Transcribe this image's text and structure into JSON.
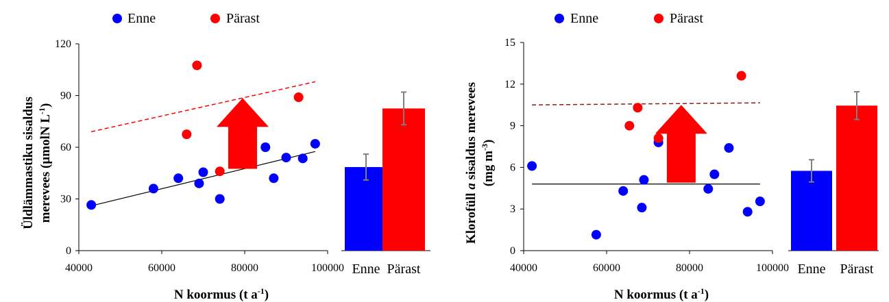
{
  "colors": {
    "before": "#0000ff",
    "after": "#ff0000",
    "arrow": "#ff0000",
    "error_bar": "#7f7f7f"
  },
  "chart_data": [
    {
      "type": "scatter",
      "legend": {
        "before": "Enne",
        "after": "Pärast",
        "position": "top"
      },
      "xlabel": "N koormus (t a⁻¹)",
      "xlabel_main": "N koormus (t a",
      "xlabel_sup": "-1",
      "xlabel_end": ")",
      "ylabel_line1": "Üldlämmastiku sisaldus",
      "ylabel_line2_main": "merevees (µmolN L",
      "ylabel_line2_sup": "-1",
      "ylabel_line2_end": ")",
      "xlim": [
        40000,
        100000
      ],
      "ylim": [
        0,
        120
      ],
      "xticks": [
        40000,
        60000,
        80000,
        100000
      ],
      "xtick_labels": [
        "40000",
        "60000",
        "80000",
        "100000"
      ],
      "yticks": [
        0,
        30,
        60,
        90,
        120
      ],
      "ytick_labels": [
        "0",
        "30",
        "60",
        "90",
        "120"
      ],
      "series": [
        {
          "name": "Enne",
          "x": [
            43000,
            58000,
            64000,
            69000,
            70000,
            74000,
            78000,
            80000,
            85000,
            87000,
            90000,
            94000,
            97000
          ],
          "y": [
            26.5,
            36,
            42,
            39,
            45.5,
            30,
            53,
            53,
            60,
            42,
            54,
            53.5,
            62
          ]
        },
        {
          "name": "Pärast",
          "x": [
            66000,
            68500,
            74000,
            93000
          ],
          "y": [
            67.5,
            107.5,
            46,
            89
          ]
        }
      ],
      "trend_before": {
        "x": [
          43000,
          97000
        ],
        "y": [
          26,
          57.5
        ]
      },
      "trend_after": {
        "x": [
          43000,
          97000
        ],
        "y": [
          69,
          98
        ]
      },
      "arrow": {
        "x": 79500,
        "y_from": 47.5,
        "y_to": 88.5
      },
      "bars": {
        "categories": [
          "Enne",
          "Pärast"
        ],
        "values": [
          48.5,
          82.5
        ],
        "errors": [
          7.5,
          9.5
        ]
      }
    },
    {
      "type": "scatter",
      "legend": {
        "before": "Enne",
        "after": "Pärast",
        "position": "top"
      },
      "xlabel": "N koormus (t a⁻¹)",
      "xlabel_main": "N koormus (t a",
      "xlabel_sup": "-1",
      "xlabel_end": ")",
      "ylabel_line1_pre": "Klorofüll ",
      "ylabel_line1_italic": "a",
      "ylabel_line1_post": " sisaldus merevees",
      "ylabel_line2_main": "(mg m",
      "ylabel_line2_sup": "-3",
      "ylabel_line2_end": ")",
      "xlim": [
        40000,
        100000
      ],
      "ylim": [
        0,
        15
      ],
      "xticks": [
        40000,
        60000,
        80000,
        100000
      ],
      "xtick_labels": [
        "40000",
        "60000",
        "80000",
        "100000"
      ],
      "yticks": [
        0,
        3,
        6,
        9,
        12,
        15
      ],
      "ytick_labels": [
        "0",
        "3",
        "6",
        "9",
        "12",
        "15"
      ],
      "series": [
        {
          "name": "Enne",
          "x": [
            42000,
            57500,
            64000,
            68500,
            69000,
            72500,
            76500,
            84500,
            86000,
            89500,
            94000,
            97000
          ],
          "y": [
            6.1,
            1.15,
            4.3,
            3.1,
            5.1,
            7.8,
            6.3,
            4.45,
            5.5,
            7.4,
            2.8,
            3.55
          ]
        },
        {
          "name": "Pärast",
          "x": [
            65500,
            67500,
            72500,
            92500
          ],
          "y": [
            9.0,
            10.3,
            8.1,
            12.6
          ]
        }
      ],
      "trend_before": {
        "x": [
          42000,
          97000
        ],
        "y": [
          4.8,
          4.8
        ]
      },
      "trend_after": {
        "x": [
          42000,
          97000
        ],
        "y": [
          10.5,
          10.65
        ]
      },
      "arrow": {
        "x": 78000,
        "y_from": 4.9,
        "y_to": 10.5
      },
      "bars": {
        "categories": [
          "Enne",
          "Pärast"
        ],
        "values": [
          5.75,
          10.45
        ],
        "errors": [
          0.8,
          1.0
        ]
      }
    }
  ]
}
